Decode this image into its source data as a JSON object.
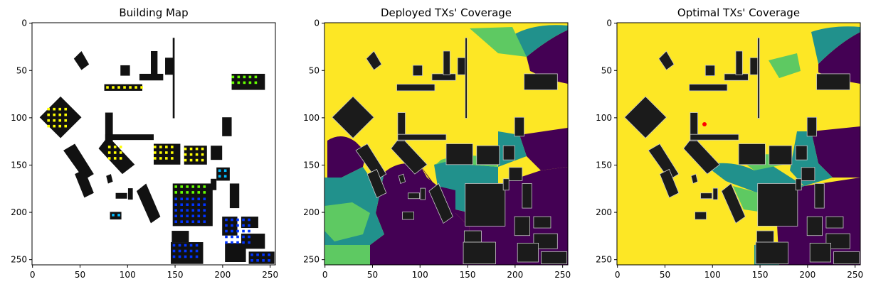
{
  "chart_data": [
    {
      "type": "heatmap",
      "title": "Building Map",
      "xlim": [
        0,
        255
      ],
      "ylim": [
        255,
        0
      ],
      "xticks": [
        0,
        50,
        100,
        150,
        200,
        250
      ],
      "yticks": [
        0,
        50,
        100,
        150,
        200,
        250
      ],
      "xtick_labels": [
        "0",
        "50",
        "100",
        "150",
        "200",
        "250"
      ],
      "ytick_labels": [
        "0",
        "50",
        "100",
        "150",
        "200",
        "250"
      ],
      "grid": false
    },
    {
      "type": "heatmap",
      "title": "Deployed TXs' Coverage",
      "xlim": [
        0,
        255
      ],
      "ylim": [
        255,
        0
      ],
      "xticks": [
        0,
        50,
        100,
        150,
        200,
        250
      ],
      "yticks": [
        0,
        50,
        100,
        150,
        200,
        250
      ],
      "xtick_labels": [
        "0",
        "50",
        "100",
        "150",
        "200",
        "250"
      ],
      "ytick_labels": [
        "0",
        "50",
        "100",
        "150",
        "200",
        "250"
      ],
      "grid": false
    },
    {
      "type": "heatmap",
      "title": "Optimal TXs' Coverage",
      "xlim": [
        0,
        255
      ],
      "ylim": [
        255,
        0
      ],
      "xticks": [
        0,
        50,
        100,
        150,
        200,
        250
      ],
      "yticks": [
        0,
        50,
        100,
        150,
        200,
        250
      ],
      "xtick_labels": [
        "0",
        "50",
        "100",
        "150",
        "200",
        "250"
      ],
      "ytick_labels": [
        "0",
        "50",
        "100",
        "150",
        "200",
        "250"
      ],
      "grid": false
    }
  ],
  "colors": {
    "building": "#111111",
    "building_gray": "#2a2a2a",
    "viridis_yellow": "#fde725",
    "viridis_green": "#5ec962",
    "viridis_teal": "#21918c",
    "viridis_purple": "#440154",
    "dot_yellow": "#ffff00",
    "dot_green": "#66ff00",
    "dot_blue": "#0033ff",
    "dot_cyan": "#00bbff",
    "tx_red": "#ff0000"
  }
}
